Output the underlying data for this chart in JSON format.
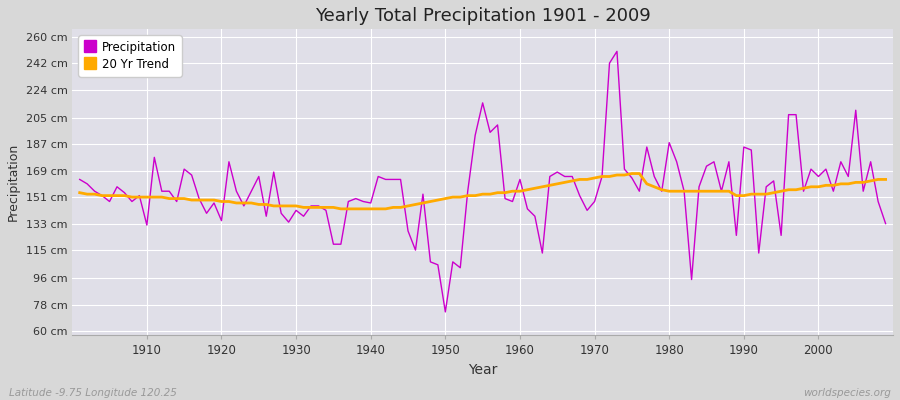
{
  "title": "Yearly Total Precipitation 1901 - 2009",
  "xlabel": "Year",
  "ylabel": "Precipitation",
  "subtitle": "Latitude -9.75 Longitude 120.25",
  "watermark": "worldspecies.org",
  "fig_bg_color": "#d8d8d8",
  "plot_bg_color": "#e0dfe8",
  "precip_color": "#cc00cc",
  "trend_color": "#ffaa00",
  "years": [
    1901,
    1902,
    1903,
    1904,
    1905,
    1906,
    1907,
    1908,
    1909,
    1910,
    1911,
    1912,
    1913,
    1914,
    1915,
    1916,
    1917,
    1918,
    1919,
    1920,
    1921,
    1922,
    1923,
    1924,
    1925,
    1926,
    1927,
    1928,
    1929,
    1930,
    1931,
    1932,
    1933,
    1934,
    1935,
    1936,
    1937,
    1938,
    1939,
    1940,
    1941,
    1942,
    1943,
    1944,
    1945,
    1946,
    1947,
    1948,
    1949,
    1950,
    1951,
    1952,
    1953,
    1954,
    1955,
    1956,
    1957,
    1958,
    1959,
    1960,
    1961,
    1962,
    1963,
    1964,
    1965,
    1966,
    1967,
    1968,
    1969,
    1970,
    1971,
    1972,
    1973,
    1974,
    1975,
    1976,
    1977,
    1978,
    1979,
    1980,
    1981,
    1982,
    1983,
    1984,
    1985,
    1986,
    1987,
    1988,
    1989,
    1990,
    1991,
    1992,
    1993,
    1994,
    1995,
    1996,
    1997,
    1998,
    1999,
    2000,
    2001,
    2002,
    2003,
    2004,
    2005,
    2006,
    2007,
    2008,
    2009
  ],
  "precip": [
    163,
    160,
    155,
    152,
    148,
    158,
    154,
    148,
    152,
    132,
    178,
    155,
    155,
    148,
    170,
    166,
    150,
    140,
    147,
    135,
    175,
    155,
    145,
    155,
    165,
    138,
    168,
    140,
    134,
    142,
    138,
    145,
    145,
    142,
    119,
    119,
    148,
    150,
    148,
    147,
    165,
    163,
    163,
    163,
    128,
    115,
    153,
    107,
    105,
    73,
    107,
    103,
    155,
    193,
    215,
    195,
    200,
    150,
    148,
    163,
    143,
    138,
    113,
    165,
    168,
    165,
    165,
    152,
    142,
    148,
    165,
    242,
    250,
    170,
    164,
    155,
    185,
    165,
    155,
    188,
    175,
    155,
    95,
    158,
    172,
    175,
    155,
    175,
    125,
    185,
    183,
    113,
    158,
    162,
    125,
    207,
    207,
    155,
    170,
    165,
    170,
    155,
    175,
    165,
    210,
    155,
    175,
    148,
    133
  ],
  "trend": [
    154,
    153,
    153,
    152,
    152,
    152,
    152,
    151,
    151,
    151,
    151,
    151,
    150,
    150,
    150,
    149,
    149,
    149,
    149,
    148,
    148,
    147,
    147,
    147,
    146,
    146,
    145,
    145,
    145,
    145,
    144,
    144,
    144,
    144,
    144,
    143,
    143,
    143,
    143,
    143,
    143,
    143,
    144,
    144,
    145,
    146,
    147,
    148,
    149,
    150,
    151,
    151,
    152,
    152,
    153,
    153,
    154,
    154,
    155,
    155,
    156,
    157,
    158,
    159,
    160,
    161,
    162,
    163,
    163,
    164,
    165,
    165,
    166,
    166,
    167,
    167,
    160,
    158,
    156,
    155,
    155,
    155,
    155,
    155,
    155,
    155,
    155,
    155,
    152,
    152,
    153,
    153,
    153,
    154,
    155,
    156,
    156,
    157,
    158,
    158,
    159,
    159,
    160,
    160,
    161,
    161,
    162,
    163,
    163
  ],
  "yticks": [
    60,
    78,
    96,
    115,
    133,
    151,
    169,
    187,
    205,
    224,
    242,
    260
  ],
  "ylim": [
    57,
    265
  ],
  "xlim": [
    1900,
    2010
  ]
}
